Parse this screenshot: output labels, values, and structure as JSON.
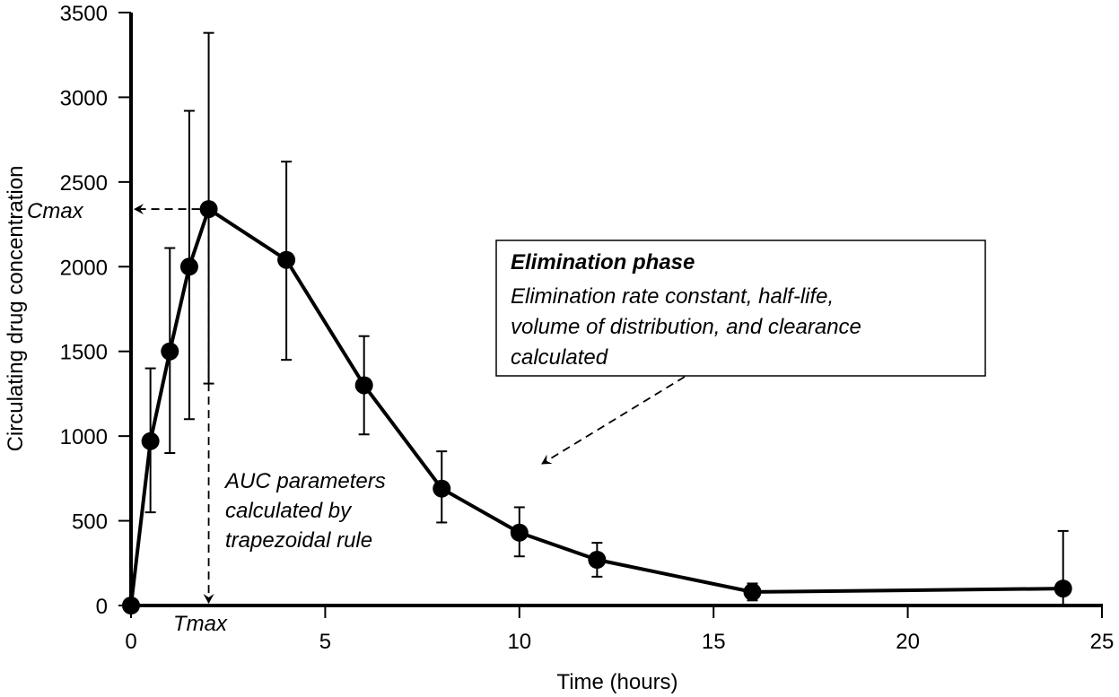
{
  "chart_data": {
    "type": "line",
    "title": "",
    "xlabel": "Time (hours)",
    "ylabel": "Circulating drug concentration",
    "xlim": [
      0,
      25
    ],
    "ylim": [
      0,
      3500
    ],
    "xticks": [
      0,
      5,
      10,
      15,
      20,
      25
    ],
    "yticks": [
      0,
      500,
      1000,
      1500,
      2000,
      2500,
      3000,
      3500
    ],
    "grid": false,
    "legend": null,
    "series": [
      {
        "name": "Drug concentration",
        "x": [
          0,
          0.5,
          1,
          1.5,
          2,
          4,
          6,
          8,
          10,
          12,
          16,
          24
        ],
        "values": [
          0,
          970,
          1500,
          2000,
          2340,
          2040,
          1300,
          690,
          430,
          270,
          80,
          100
        ],
        "error_upper": [
          0,
          1400,
          2110,
          2920,
          3380,
          2620,
          1590,
          910,
          580,
          370,
          130,
          440
        ],
        "error_lower": [
          0,
          550,
          900,
          1100,
          1310,
          1450,
          1010,
          490,
          290,
          170,
          30,
          0
        ]
      }
    ],
    "annotations": [
      {
        "text": "Cmax",
        "x": 0,
        "y": 2340,
        "style": "italic",
        "arrow": "dashed from peak to y-axis"
      },
      {
        "text": "Tmax",
        "x": 2,
        "y": 0,
        "style": "italic",
        "arrow": "dashed from peak down to x-axis"
      },
      {
        "text": "AUC parameters calculated by trapezoidal rule",
        "style": "italic"
      },
      {
        "text": "Elimination phase",
        "style": "bold italic",
        "boxed": true
      },
      {
        "text": "Elimination rate constant, half-life, volume of distribution, and clearance calculated",
        "style": "italic",
        "boxed": true,
        "arrow": "dashed to curve"
      }
    ]
  },
  "labels": {
    "xlabel": "Time (hours)",
    "ylabel": "Circulating drug concentration",
    "cmax": "Cmax",
    "tmax": "Tmax",
    "auc_lines": [
      "AUC parameters",
      "calculated by",
      "trapezoidal rule"
    ],
    "elim_title": "Elimination phase",
    "elim_lines": [
      "Elimination rate constant, half-life,",
      "volume of distribution, and clearance",
      "calculated"
    ]
  },
  "colors": {
    "line": "#000000",
    "background": "#ffffff"
  }
}
